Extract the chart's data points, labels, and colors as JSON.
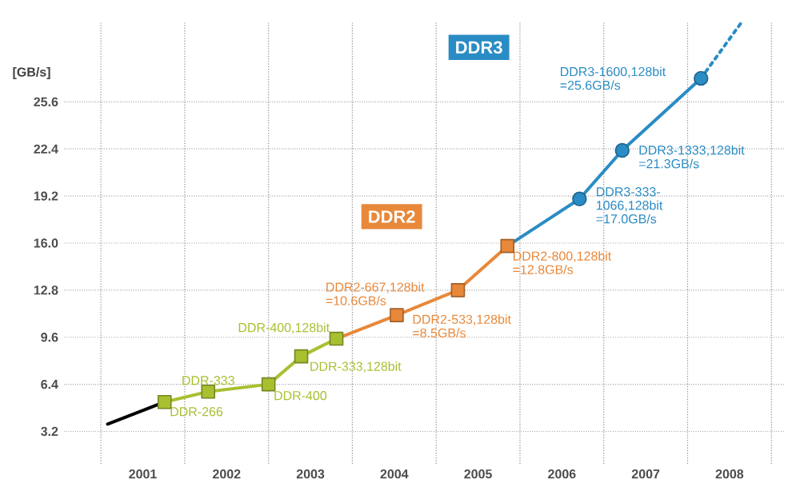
{
  "chart_data": {
    "type": "line",
    "ylabel": "[GB/s]",
    "xlim": [
      2000.06,
      2008.65
    ],
    "ylim": [
      1.0,
      31.0
    ],
    "xticks": [
      2001,
      2002,
      2003,
      2004,
      2005,
      2006,
      2007,
      2008
    ],
    "yticks": [
      3.2,
      6.4,
      9.6,
      12.8,
      {
        "value": 16.0,
        "label": "16.0"
      },
      19.2,
      22.4,
      25.6
    ],
    "grid": true,
    "series": [
      {
        "color": "#000000",
        "x": [
          2000.58,
          2001.26
        ],
        "values": [
          3.7,
          5.2
        ]
      },
      {
        "color": "#a8c030",
        "marker": "square",
        "x": [
          2001.26,
          2001.78,
          2002.5,
          2002.89,
          2003.31
        ],
        "values": [
          5.2,
          5.9,
          6.4,
          8.3,
          9.5
        ]
      },
      {
        "color": "#e8883a",
        "x": [
          2003.31,
          2004.03
        ],
        "values": [
          9.5,
          11.1
        ]
      },
      {
        "name": "DDR2",
        "color": "#e8883a",
        "marker": "square",
        "x": [
          2004.03,
          2004.76,
          2005.35
        ],
        "values": [
          11.1,
          12.8,
          15.8
        ]
      },
      {
        "color": "#2a8cc4",
        "x": [
          2005.35,
          2006.21
        ],
        "values": [
          15.8,
          19.0
        ]
      },
      {
        "name": "DDR3",
        "color": "#2a8cc4",
        "marker": "circle",
        "x": [
          2006.21,
          2006.72,
          2007.66
        ],
        "values": [
          19.0,
          22.3,
          27.2
        ]
      },
      {
        "color": "#2a8cc4",
        "line_style": "dotted",
        "x": [
          2007.66,
          2008.13
        ],
        "values": [
          27.2,
          30.9
        ]
      }
    ],
    "annotations": [
      {
        "text": "DDR-266",
        "x": 2001.26,
        "y": 5.2
      },
      {
        "text": "DDR-333",
        "x": 2001.78,
        "y": 5.9
      },
      {
        "text": "DDR-400",
        "x": 2002.5,
        "y": 6.4
      },
      {
        "text": "DDR-333,128bit",
        "x": 2002.89,
        "y": 8.3
      },
      {
        "text": "DDR-400,128bit",
        "x": 2003.31,
        "y": 9.5
      },
      {
        "text": "DDR2-667,128bit =10.6GB/s",
        "x": 2004.03,
        "y": 11.1
      },
      {
        "text": "DDR2-533,128bit =8.5GB/s",
        "x": 2004.76,
        "y": 12.8
      },
      {
        "text": "DDR2-800,128bit =12.8GB/s",
        "x": 2005.35,
        "y": 15.8
      },
      {
        "text": "DDR3-333-1066,128bit =17.0GB/s",
        "x": 2006.21,
        "y": 19.0
      },
      {
        "text": "DDR3-1333,128bit =21.3GB/s",
        "x": 2006.72,
        "y": 22.3
      },
      {
        "text": "DDR3-1600,128bit =25.6GB/s",
        "x": 2007.66,
        "y": 27.2
      }
    ]
  }
}
